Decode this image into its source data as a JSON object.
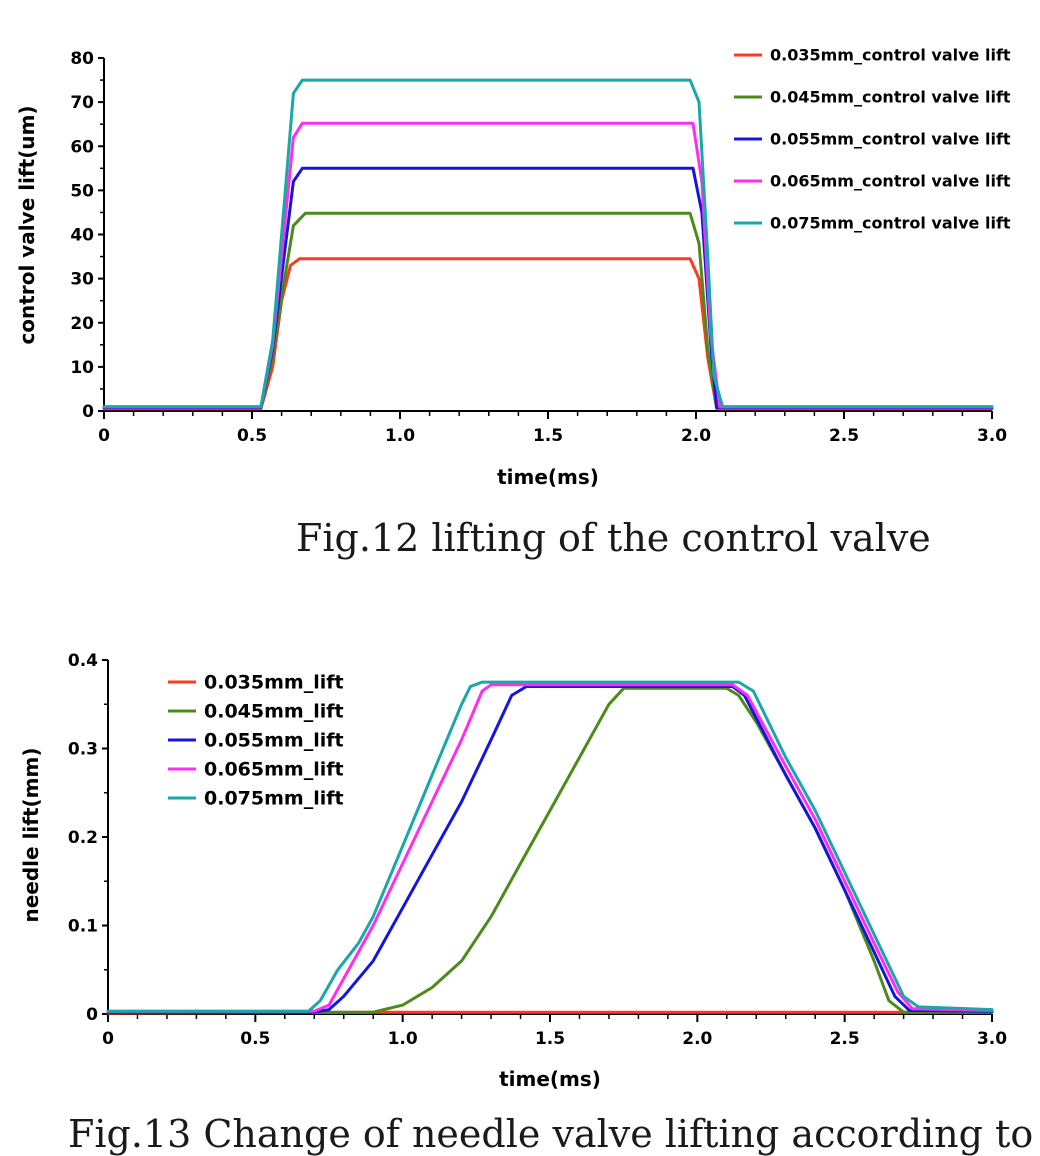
{
  "captions": {
    "fig12": "Fig.12 lifting of the control valve",
    "fig13": "Fig.13 Change of needle valve lifting according to"
  },
  "colors": {
    "red": "#ff3a1e",
    "green": "#4c8a1a",
    "blue": "#1515e0",
    "magenta": "#ff2df2",
    "teal": "#1aa7a7",
    "axis": "#000000"
  },
  "chart_data": [
    {
      "type": "line",
      "title": "",
      "xlabel": "time(ms)",
      "ylabel": "control valve lift(um)",
      "xlim": [
        0,
        3.0
      ],
      "ylim": [
        0,
        80
      ],
      "xticks": [
        "0",
        "0.5",
        "1.0",
        "1.5",
        "2.0",
        "2.5",
        "3.0"
      ],
      "yticks": [
        "0",
        "10",
        "20",
        "30",
        "40",
        "50",
        "60",
        "70",
        "80"
      ],
      "legend": "top-right",
      "series": [
        {
          "name": "0.035mm_control valve lift",
          "color": "red",
          "x": [
            0,
            0.53,
            0.57,
            0.6,
            0.63,
            0.66,
            1.0,
            1.5,
            1.98,
            2.01,
            2.04,
            2.07,
            2.5,
            3.0
          ],
          "y": [
            0.5,
            0.5,
            10,
            25,
            33,
            34.5,
            34.5,
            34.5,
            34.5,
            30,
            12,
            0.5,
            0.5,
            0.5
          ]
        },
        {
          "name": "0.045mm_control valve lift",
          "color": "green",
          "x": [
            0,
            0.53,
            0.57,
            0.61,
            0.64,
            0.68,
            1.0,
            1.5,
            1.98,
            2.01,
            2.04,
            2.07,
            2.5,
            3.0
          ],
          "y": [
            0.6,
            0.6,
            12,
            30,
            42,
            44.8,
            44.8,
            44.8,
            44.8,
            38,
            14,
            0.6,
            0.6,
            0.6
          ]
        },
        {
          "name": "0.055mm_control valve lift",
          "color": "blue",
          "x": [
            0,
            0.53,
            0.57,
            0.61,
            0.64,
            0.67,
            1.0,
            1.5,
            1.99,
            2.02,
            2.05,
            2.07,
            2.5,
            3.0
          ],
          "y": [
            0.8,
            0.8,
            14,
            36,
            52,
            55,
            55,
            55,
            55,
            45,
            15,
            0.8,
            0.8,
            0.8
          ]
        },
        {
          "name": "0.065mm_control valve lift",
          "color": "magenta",
          "x": [
            0,
            0.53,
            0.57,
            0.61,
            0.64,
            0.67,
            1.0,
            1.5,
            1.99,
            2.02,
            2.05,
            2.08,
            2.5,
            3.0
          ],
          "y": [
            0.9,
            0.9,
            15,
            42,
            62,
            65.2,
            65.2,
            65.2,
            65.2,
            52,
            17,
            0.9,
            0.9,
            0.9
          ]
        },
        {
          "name": "0.075mm_control valve lift",
          "color": "teal",
          "x": [
            0,
            0.53,
            0.57,
            0.61,
            0.64,
            0.67,
            1.0,
            1.5,
            1.98,
            2.01,
            2.04,
            2.06,
            2.09,
            2.5,
            3.0
          ],
          "y": [
            1.0,
            1.0,
            16,
            48,
            72,
            75,
            75,
            75,
            75,
            70,
            35,
            8,
            1.0,
            1.0,
            1.0
          ]
        }
      ]
    },
    {
      "type": "line",
      "title": "",
      "xlabel": "time(ms)",
      "ylabel": "needle  lift(mm)",
      "xlim": [
        0,
        3.0
      ],
      "ylim": [
        0,
        0.4
      ],
      "xticks": [
        "0",
        "0.5",
        "1.0",
        "1.5",
        "2.0",
        "2.5",
        "3.0"
      ],
      "yticks": [
        "0",
        "0.1",
        "0.2",
        "0.3",
        "0.4"
      ],
      "legend": "top-left",
      "series": [
        {
          "name": "0.035mm_lift",
          "color": "red",
          "x": [
            0,
            1.0,
            2.0,
            2.7,
            3.0
          ],
          "y": [
            0.001,
            0.002,
            0.002,
            0.002,
            0.002
          ]
        },
        {
          "name": "0.045mm_lift",
          "color": "green",
          "x": [
            0,
            0.9,
            1.0,
            1.1,
            1.2,
            1.3,
            1.4,
            1.5,
            1.6,
            1.7,
            1.75,
            2.0,
            2.1,
            2.14,
            2.2,
            2.3,
            2.4,
            2.5,
            2.6,
            2.65,
            2.7,
            3.0
          ],
          "y": [
            0.002,
            0.002,
            0.01,
            0.03,
            0.06,
            0.11,
            0.17,
            0.23,
            0.29,
            0.35,
            0.368,
            0.368,
            0.368,
            0.36,
            0.33,
            0.27,
            0.21,
            0.14,
            0.06,
            0.015,
            0.002,
            0.002
          ]
        },
        {
          "name": "0.055mm_lift",
          "color": "blue",
          "x": [
            0,
            0.7,
            0.75,
            0.8,
            0.9,
            1.0,
            1.1,
            1.2,
            1.3,
            1.37,
            1.42,
            1.5,
            2.0,
            2.12,
            2.16,
            2.3,
            2.4,
            2.5,
            2.6,
            2.67,
            2.72,
            3.0
          ],
          "y": [
            0.002,
            0.002,
            0.005,
            0.02,
            0.06,
            0.12,
            0.18,
            0.24,
            0.31,
            0.36,
            0.37,
            0.37,
            0.37,
            0.37,
            0.36,
            0.27,
            0.21,
            0.14,
            0.07,
            0.02,
            0.004,
            0.003
          ]
        },
        {
          "name": "0.065mm_lift",
          "color": "magenta",
          "x": [
            0,
            0.7,
            0.75,
            0.8,
            0.9,
            1.0,
            1.1,
            1.2,
            1.27,
            1.3,
            1.5,
            2.0,
            2.12,
            2.17,
            2.3,
            2.4,
            2.5,
            2.6,
            2.68,
            2.73,
            3.0
          ],
          "y": [
            0.003,
            0.003,
            0.01,
            0.04,
            0.1,
            0.17,
            0.24,
            0.31,
            0.365,
            0.372,
            0.372,
            0.372,
            0.372,
            0.36,
            0.28,
            0.22,
            0.15,
            0.08,
            0.025,
            0.006,
            0.004
          ]
        },
        {
          "name": "0.075mm_lift",
          "color": "teal",
          "x": [
            0,
            0.68,
            0.72,
            0.78,
            0.85,
            0.9,
            1.0,
            1.1,
            1.2,
            1.23,
            1.27,
            1.5,
            2.0,
            2.14,
            2.19,
            2.3,
            2.4,
            2.5,
            2.6,
            2.7,
            2.75,
            3.0
          ],
          "y": [
            0.003,
            0.003,
            0.015,
            0.05,
            0.08,
            0.11,
            0.19,
            0.27,
            0.35,
            0.37,
            0.375,
            0.375,
            0.375,
            0.375,
            0.365,
            0.29,
            0.23,
            0.16,
            0.09,
            0.02,
            0.008,
            0.005
          ]
        }
      ]
    }
  ]
}
